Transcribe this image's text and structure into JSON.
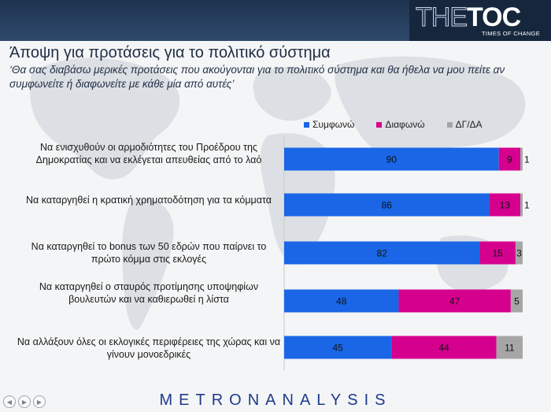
{
  "header": {
    "logo_the": "THE",
    "logo_toc": "TOC",
    "logo_sub": "TIMES OF CHANGE"
  },
  "title": "Άποψη για προτάσεις για το πολιτικό σύστημα",
  "subtitle": "‘Θα σας διαβάσω μερικές προτάσεις που ακούγονται για το πολιτικό σύστημα και θα ήθελα να μου πείτε αν συμφωνείτε ή διαφωνείτε με κάθε μία από αυτές’",
  "footer": {
    "brand": "METRONANALYSIS"
  },
  "colors": {
    "agree": "#1a66e6",
    "disagree": "#d6008f",
    "dk": "#a6a6a6"
  },
  "chart_data": {
    "type": "bar",
    "orientation": "horizontal",
    "stacked": true,
    "categories": [
      "Να ενισχυθούν οι αρμοδιότητες του Προέδρου της Δημοκρατίας και να εκλέγεται απευθείας από το λαό",
      "Να καταργηθεί η κρατική χρηματοδότηση για τα κόμματα",
      "Να καταργηθεί το bonus των 50 εδρών που παίρνει το πρώτο κόμμα στις εκλογές",
      "Να καταργηθεί ο σταυρός προτίμησης υποψηφίων βουλευτών και να καθιερωθεί η λίστα",
      "Να αλλάξουν όλες οι εκλογικές περιφέρειες της χώρας και να  γίνουν μονοεδρικές"
    ],
    "series": [
      {
        "name": "Συμφωνώ",
        "values": [
          90,
          86,
          82,
          48,
          45
        ]
      },
      {
        "name": "Διαφωνώ",
        "values": [
          9,
          13,
          15,
          47,
          44
        ]
      },
      {
        "name": "ΔΓ/ΔΑ",
        "values": [
          1,
          1,
          3,
          5,
          11
        ]
      }
    ],
    "xlim": [
      0,
      100
    ],
    "legend": "top"
  }
}
